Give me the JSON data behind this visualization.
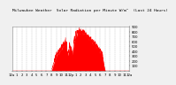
{
  "title": "Milwaukee Weather  Solar Radiation per Minute W/m²  (Last 24 Hours)",
  "title_fontsize": 3.2,
  "bg_color": "#f0f0f0",
  "plot_bg_color": "#ffffff",
  "line_color": "#ff0000",
  "fill_color": "#ff0000",
  "grid_color": "#999999",
  "ylim": [
    0,
    900
  ],
  "yticks": [
    100,
    200,
    300,
    400,
    500,
    600,
    700,
    800,
    900
  ],
  "num_points": 1440,
  "tick_fontsize": 2.8,
  "xtick_positions": [
    0,
    60,
    120,
    180,
    240,
    300,
    360,
    420,
    480,
    540,
    600,
    660,
    720,
    780,
    840,
    900,
    960,
    1020,
    1080,
    1140,
    1200,
    1260,
    1320,
    1380,
    1439
  ],
  "xtick_labels": [
    "12a",
    "1",
    "2",
    "3",
    "4",
    "5",
    "6",
    "7",
    "8",
    "9",
    "10",
    "11",
    "12p",
    "1",
    "2",
    "3",
    "4",
    "5",
    "6",
    "7",
    "8",
    "9",
    "10",
    "11",
    "12a"
  ]
}
